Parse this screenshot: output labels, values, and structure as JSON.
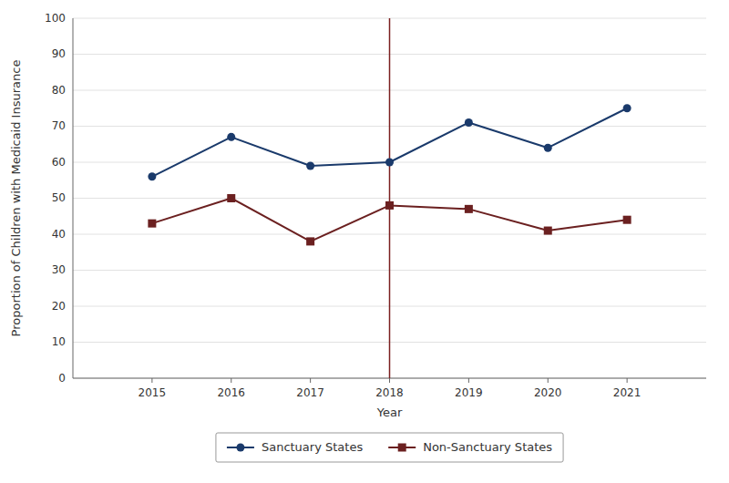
{
  "chart_data": {
    "type": "line",
    "x": [
      2015,
      2016,
      2017,
      2018,
      2019,
      2020,
      2021
    ],
    "series": [
      {
        "name": "Sanctuary States",
        "color": "#1a3a6b",
        "marker": "circle",
        "values": [
          56,
          67,
          59,
          60,
          71,
          64,
          75
        ]
      },
      {
        "name": "Non-Sanctuary States",
        "color": "#6b2020",
        "marker": "square",
        "values": [
          43,
          50,
          38,
          48,
          47,
          41,
          44
        ]
      }
    ],
    "vlines": [
      {
        "x": 2018,
        "color": "#7b2020"
      }
    ],
    "x_label": "Year",
    "y_label": "Proportion of Children with Medicaid Insurance",
    "xlim": [
      2014,
      2022
    ],
    "xticks": [
      2015,
      2016,
      2017,
      2018,
      2019,
      2020,
      2021
    ],
    "ylim": [
      0,
      100
    ],
    "yticks": [
      0,
      10,
      20,
      30,
      40,
      50,
      60,
      70,
      80,
      90,
      100
    ],
    "grid": true,
    "legend": "bottom"
  }
}
